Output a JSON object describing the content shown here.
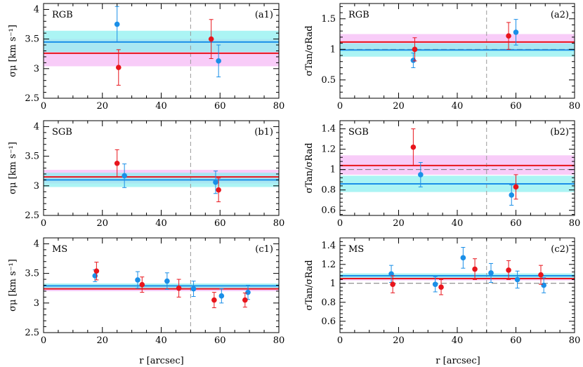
{
  "colors": {
    "red": "#e8151c",
    "blue": "#1a8fe8",
    "cyan_band": "#8ff0f0",
    "pink_band": "#f7c6f7",
    "dash": "#999999"
  },
  "x_axis": {
    "label": "r [arcsec]",
    "xlim": [
      0,
      80
    ],
    "ticks": [
      0,
      20,
      40,
      60,
      80
    ],
    "divider_x": 50
  },
  "chart_data": [
    {
      "type": "scatter",
      "id": "a1",
      "panel_label": "(a1)",
      "population": "RGB",
      "ylabel": "σμ [km s⁻¹]",
      "ylim": [
        2.5,
        4.1
      ],
      "yticks": [
        2.5,
        3,
        3.5,
        4
      ],
      "bands": {
        "blue": {
          "value": 3.45,
          "lo": 3.28,
          "hi": 3.64
        },
        "red": {
          "value": 3.26,
          "lo": 3.04,
          "hi": 3.5
        }
      },
      "series": [
        {
          "name": "blue",
          "points": [
            {
              "x": 25,
              "y": 3.75,
              "err": 0.3
            },
            {
              "x": 59.5,
              "y": 3.13,
              "err": 0.27
            }
          ]
        },
        {
          "name": "red",
          "points": [
            {
              "x": 25.5,
              "y": 3.02,
              "err": 0.3
            },
            {
              "x": 57,
              "y": 3.5,
              "err": 0.33
            }
          ]
        }
      ]
    },
    {
      "type": "scatter",
      "id": "a2",
      "panel_label": "(a2)",
      "population": "RGB",
      "ylabel": "σTan/σRad",
      "ylim": [
        0.2,
        1.75
      ],
      "yticks": [
        0.5,
        1,
        1.5
      ],
      "reference_line": 1,
      "bands": {
        "blue": {
          "value": 0.99,
          "lo": 0.88,
          "hi": 1.1
        },
        "red": {
          "value": 1.12,
          "lo": 0.99,
          "hi": 1.25
        }
      },
      "series": [
        {
          "name": "blue",
          "points": [
            {
              "x": 25,
              "y": 0.82,
              "err": 0.12
            },
            {
              "x": 60,
              "y": 1.28,
              "err": 0.21
            }
          ]
        },
        {
          "name": "red",
          "points": [
            {
              "x": 25.5,
              "y": 1.0,
              "err": 0.19
            },
            {
              "x": 57.5,
              "y": 1.22,
              "err": 0.22
            }
          ]
        }
      ]
    },
    {
      "type": "scatter",
      "id": "b1",
      "panel_label": "(b1)",
      "population": "SGB",
      "ylabel": "σμ [km s⁻¹]",
      "ylim": [
        2.5,
        4.1
      ],
      "yticks": [
        2.5,
        3,
        3.5,
        4
      ],
      "bands": {
        "blue": {
          "value": 3.1,
          "lo": 2.98,
          "hi": 3.22
        },
        "red": {
          "value": 3.15,
          "lo": 3.04,
          "hi": 3.27
        }
      },
      "series": [
        {
          "name": "blue",
          "points": [
            {
              "x": 27.5,
              "y": 3.17,
              "err": 0.2
            },
            {
              "x": 58.5,
              "y": 3.06,
              "err": 0.19
            }
          ]
        },
        {
          "name": "red",
          "points": [
            {
              "x": 25,
              "y": 3.38,
              "err": 0.23
            },
            {
              "x": 59.5,
              "y": 2.93,
              "err": 0.2
            }
          ]
        }
      ]
    },
    {
      "type": "scatter",
      "id": "b2",
      "panel_label": "(b2)",
      "population": "SGB",
      "ylabel": "σTan/σRad",
      "ylim": [
        0.55,
        1.48
      ],
      "yticks": [
        0.6,
        0.8,
        1,
        1.2,
        1.4
      ],
      "reference_line": 1,
      "bands": {
        "blue": {
          "value": 0.86,
          "lo": 0.78,
          "hi": 0.94
        },
        "red": {
          "value": 1.04,
          "lo": 0.95,
          "hi": 1.14
        }
      },
      "series": [
        {
          "name": "blue",
          "points": [
            {
              "x": 27.5,
              "y": 0.95,
              "err": 0.12
            },
            {
              "x": 58.5,
              "y": 0.75,
              "err": 0.1
            }
          ]
        },
        {
          "name": "red",
          "points": [
            {
              "x": 25,
              "y": 1.22,
              "err": 0.18
            },
            {
              "x": 60,
              "y": 0.83,
              "err": 0.12
            }
          ]
        }
      ]
    },
    {
      "type": "scatter",
      "id": "c1",
      "panel_label": "(c1)",
      "population": "MS",
      "ylabel": "σμ [km s⁻¹]",
      "ylim": [
        2.5,
        4.1
      ],
      "yticks": [
        2.5,
        3,
        3.5,
        4
      ],
      "bands": {
        "blue": {
          "value": 3.29,
          "lo": 3.25,
          "hi": 3.33
        },
        "red": {
          "value": 3.24,
          "lo": 3.2,
          "hi": 3.28
        }
      },
      "series": [
        {
          "name": "blue",
          "points": [
            {
              "x": 17.5,
              "y": 3.46,
              "err": 0.1
            },
            {
              "x": 32,
              "y": 3.39,
              "err": 0.14
            },
            {
              "x": 42,
              "y": 3.37,
              "err": 0.14
            },
            {
              "x": 51,
              "y": 3.24,
              "err": 0.13
            },
            {
              "x": 60.5,
              "y": 3.12,
              "err": 0.12
            },
            {
              "x": 69.5,
              "y": 3.18,
              "err": 0.12
            }
          ]
        },
        {
          "name": "red",
          "points": [
            {
              "x": 18,
              "y": 3.54,
              "err": 0.15
            },
            {
              "x": 33.5,
              "y": 3.31,
              "err": 0.13
            },
            {
              "x": 46,
              "y": 3.25,
              "err": 0.15
            },
            {
              "x": 58,
              "y": 3.05,
              "err": 0.13
            },
            {
              "x": 68.5,
              "y": 3.05,
              "err": 0.12
            }
          ]
        }
      ]
    },
    {
      "type": "scatter",
      "id": "c2",
      "panel_label": "(c2)",
      "population": "MS",
      "ylabel": "σTan/σRad",
      "ylim": [
        0.48,
        1.48
      ],
      "yticks": [
        0.6,
        0.8,
        1,
        1.2,
        1.4
      ],
      "reference_line": 1,
      "bands": {
        "blue": {
          "value": 1.08,
          "lo": 1.055,
          "hi": 1.105
        },
        "red": {
          "value": 1.05,
          "lo": 1.03,
          "hi": 1.07
        }
      },
      "series": [
        {
          "name": "blue",
          "points": [
            {
              "x": 17.5,
              "y": 1.1,
              "err": 0.09
            },
            {
              "x": 32.5,
              "y": 0.99,
              "err": 0.08
            },
            {
              "x": 42,
              "y": 1.27,
              "err": 0.11
            },
            {
              "x": 51.5,
              "y": 1.11,
              "err": 0.1
            },
            {
              "x": 60.5,
              "y": 1.04,
              "err": 0.09
            },
            {
              "x": 69.5,
              "y": 0.98,
              "err": 0.08
            }
          ]
        },
        {
          "name": "red",
          "points": [
            {
              "x": 18,
              "y": 0.99,
              "err": 0.09
            },
            {
              "x": 34.5,
              "y": 0.96,
              "err": 0.08
            },
            {
              "x": 46,
              "y": 1.15,
              "err": 0.11
            },
            {
              "x": 57.5,
              "y": 1.14,
              "err": 0.1
            },
            {
              "x": 68.5,
              "y": 1.09,
              "err": 0.1
            }
          ]
        }
      ]
    }
  ]
}
